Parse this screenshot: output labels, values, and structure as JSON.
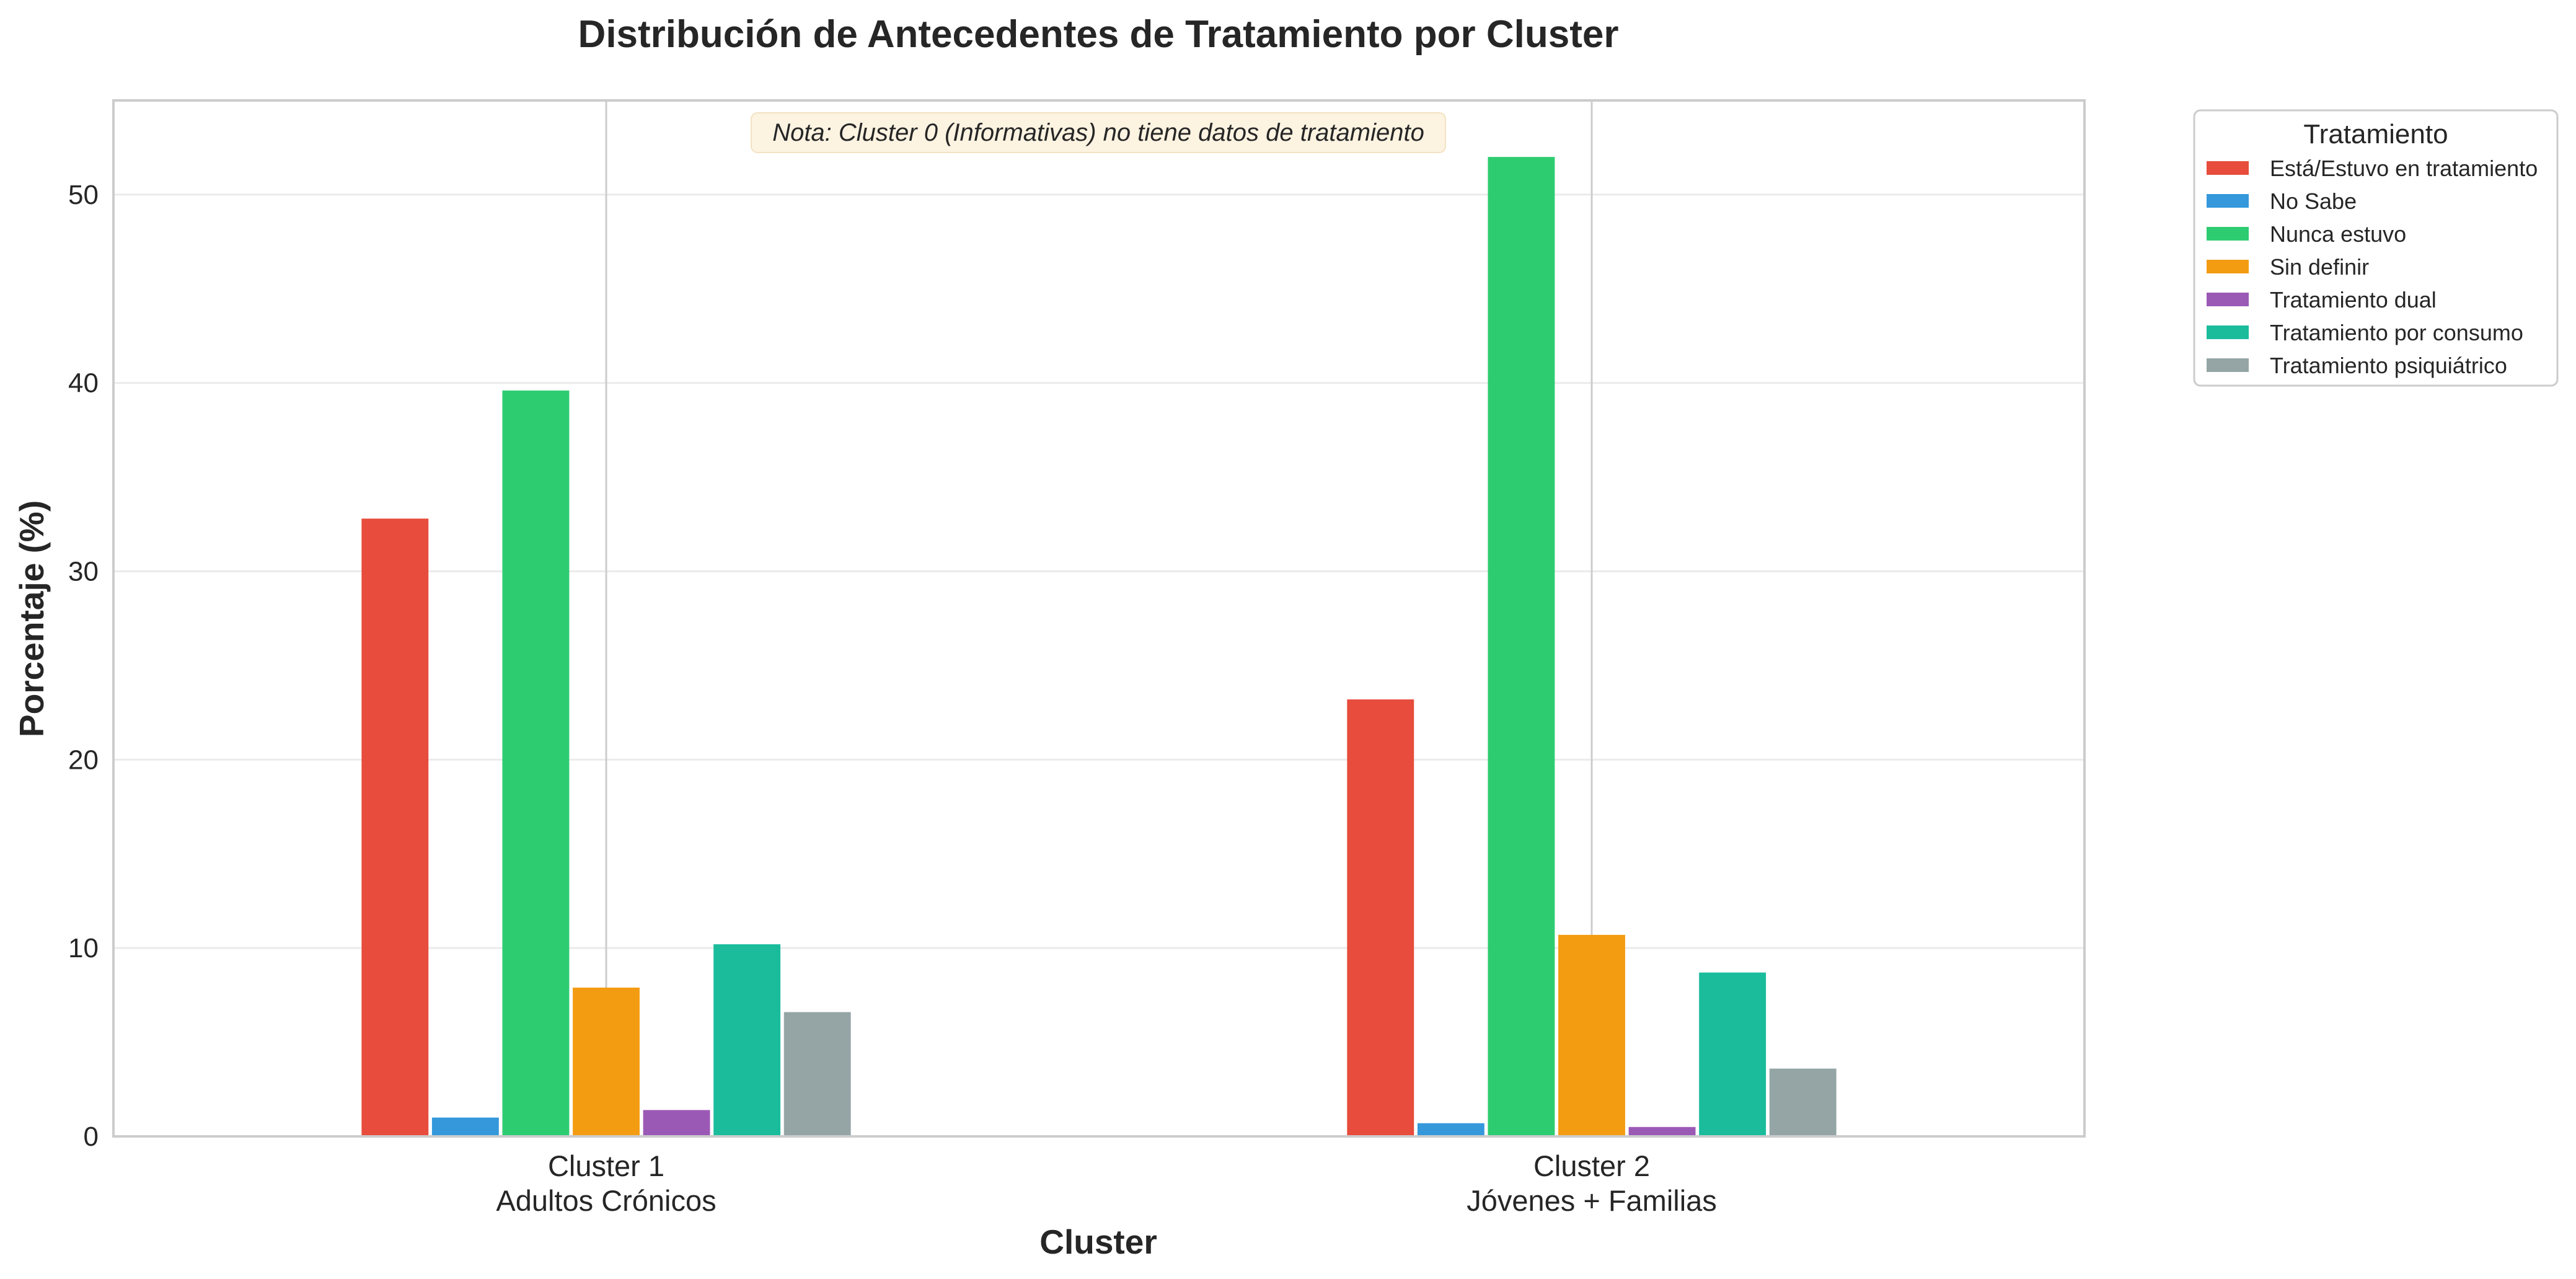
{
  "chart_data": {
    "type": "bar",
    "title": "Distribución de Antecedentes de Tratamiento por Cluster",
    "xlabel": "Cluster",
    "ylabel": "Porcentaje (%)",
    "ylim": [
      0,
      55
    ],
    "yticks": [
      0,
      10,
      20,
      30,
      40,
      50
    ],
    "grid": true,
    "legend_position": "outside-top-right",
    "legend_title": "Tratamiento",
    "annotation": "Nota: Cluster 0 (Informativas) no tiene datos de tratamiento",
    "categories": [
      {
        "line1": "Cluster 1",
        "line2": "Adultos Crónicos"
      },
      {
        "line1": "Cluster 2",
        "line2": "Jóvenes + Familias"
      }
    ],
    "series": [
      {
        "name": "Está/Estuvo en tratamiento",
        "color": "#e74c3c",
        "values": [
          32.8,
          23.2
        ]
      },
      {
        "name": "No Sabe",
        "color": "#3498db",
        "values": [
          1.0,
          0.7
        ]
      },
      {
        "name": "Nunca estuvo",
        "color": "#2ecc71",
        "values": [
          39.6,
          52.0
        ]
      },
      {
        "name": "Sin definir",
        "color": "#f39c12",
        "values": [
          7.9,
          10.7
        ]
      },
      {
        "name": "Tratamiento dual",
        "color": "#9b59b6",
        "values": [
          1.4,
          0.5
        ]
      },
      {
        "name": "Tratamiento por consumo",
        "color": "#1abc9c",
        "values": [
          10.2,
          8.7
        ]
      },
      {
        "name": "Tratamiento psiquiátrico",
        "color": "#95a5a6",
        "values": [
          6.6,
          3.6
        ]
      }
    ]
  }
}
